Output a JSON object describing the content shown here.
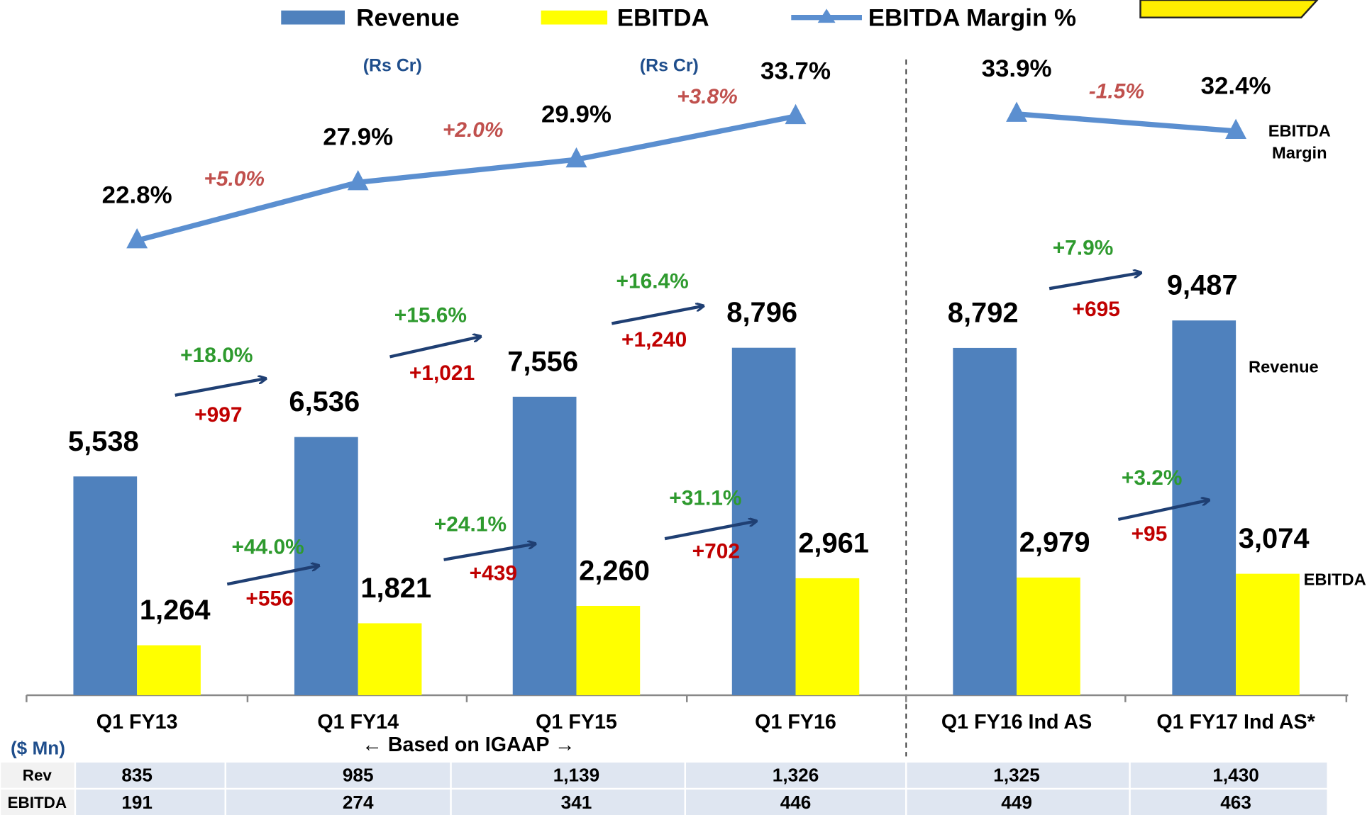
{
  "chart_data": {
    "type": "bar_line",
    "legend": [
      "Revenue",
      "EBITDA",
      "EBITDA Margin %"
    ],
    "categories": [
      "Q1 FY13",
      "Q1 FY14",
      "Q1 FY15",
      "Q1 FY16",
      "Q1 FY16 Ind AS",
      "Q1 FY17 Ind AS*"
    ],
    "ylim": [
      0,
      17600
    ],
    "y2lim": [
      -17.1,
      43.9
    ],
    "divider_after": 3,
    "series": [
      {
        "name": "Revenue",
        "color": "#4f81bd",
        "values": [
          5538,
          6536,
          7556,
          8796,
          8792,
          9487
        ],
        "value_labels": [
          "5,538",
          "6,536",
          "7,556",
          "8,796",
          "8,792",
          "9,487"
        ],
        "side_label": "Revenue"
      },
      {
        "name": "EBITDA",
        "color": "#ffff00",
        "values": [
          1264,
          1821,
          2260,
          2961,
          2979,
          3074
        ],
        "value_labels": [
          "1,264",
          "1,821",
          "2,260",
          "2,961",
          "2,979",
          "3,074"
        ],
        "side_label": "EBITDA"
      },
      {
        "name": "EBITDA Margin %",
        "color": "#5b8fd0",
        "axis": "y2",
        "values": [
          22.8,
          27.9,
          29.9,
          33.7,
          33.9,
          32.4
        ],
        "value_labels": [
          "22.8%",
          "27.9%",
          "29.9%",
          "33.7%",
          "33.9%",
          "32.4%"
        ],
        "side_label": [
          "EBITDA",
          "Margin"
        ]
      }
    ],
    "revenue_growth": [
      {
        "pct": "+18.0%",
        "abs": "+997"
      },
      {
        "pct": "+15.6%",
        "abs": "+1,021"
      },
      {
        "pct": "+16.4%",
        "abs": "+1,240"
      },
      {
        "pct": "+7.9%",
        "abs": "+695"
      }
    ],
    "ebitda_growth": [
      {
        "pct": "+44.0%",
        "abs": "+556"
      },
      {
        "pct": "+24.1%",
        "abs": "+439"
      },
      {
        "pct": "+31.1%",
        "abs": "+702"
      },
      {
        "pct": "+3.2%",
        "abs": "+95"
      }
    ],
    "margin_change": [
      "+5.0%",
      "+2.0%",
      "+3.8%",
      "-1.5%"
    ],
    "units": [
      "(Rs Cr)",
      "(Rs Cr)"
    ],
    "group_label": "← Based on IGAAP →"
  },
  "table": {
    "unit": "($ Mn)",
    "rows": [
      [
        "Rev",
        "835",
        "985",
        "1,139",
        "1,326",
        "1,325",
        "1,430"
      ],
      [
        "EBITDA",
        "191",
        "274",
        "341",
        "446",
        "449",
        "463"
      ]
    ]
  }
}
